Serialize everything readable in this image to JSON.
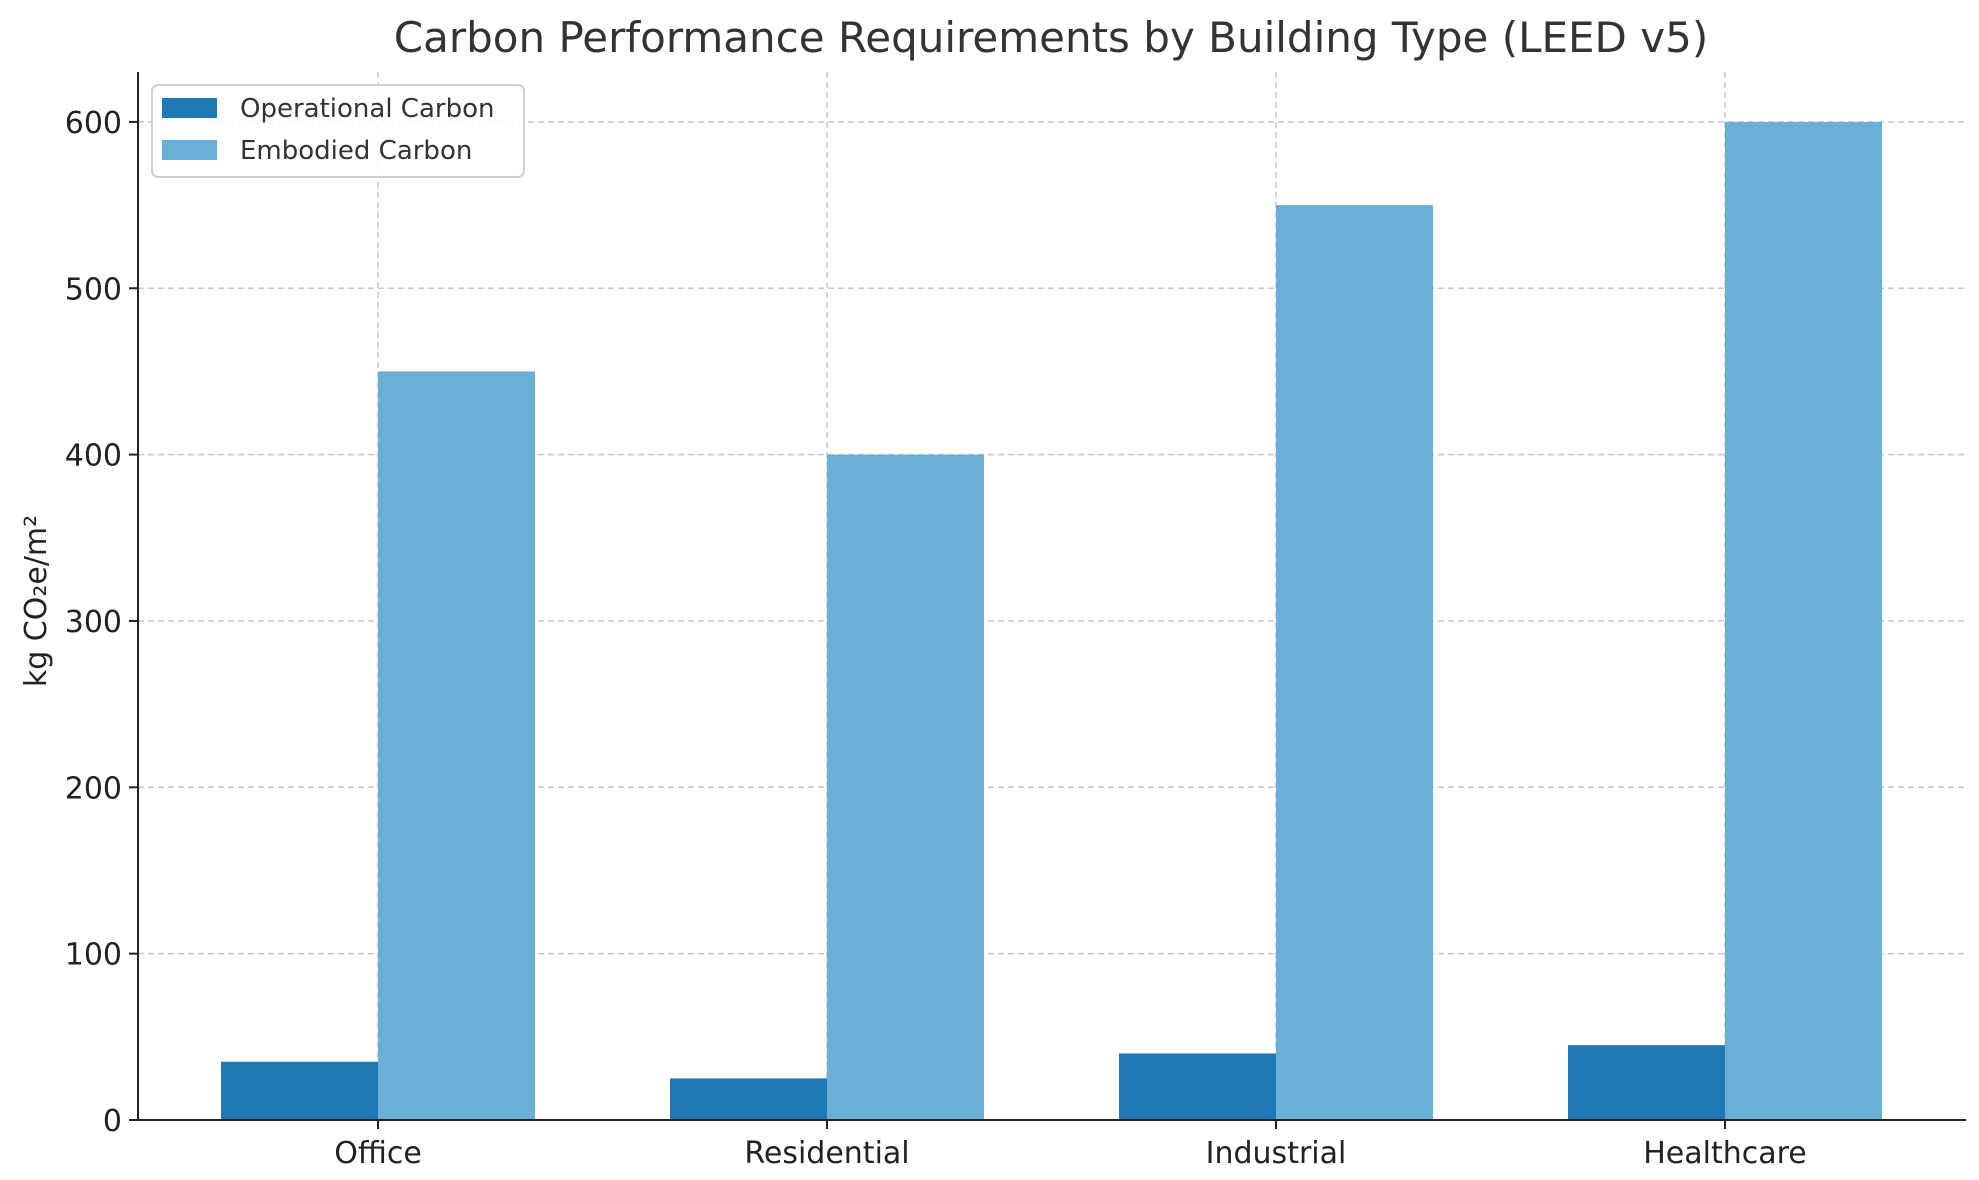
{
  "chart_data": {
    "type": "bar",
    "title": "Carbon Performance Requirements by Building Type (LEED v5)",
    "xlabel": "",
    "ylabel": "kg CO₂e/m²",
    "categories": [
      "Office",
      "Residential",
      "Industrial",
      "Healthcare"
    ],
    "series": [
      {
        "name": "Operational Carbon",
        "values": [
          35,
          25,
          40,
          45
        ],
        "color": "#1f77b4"
      },
      {
        "name": "Embodied Carbon",
        "values": [
          450,
          400,
          550,
          600
        ],
        "color": "#6baed6"
      }
    ],
    "ylim": [
      0,
      630
    ],
    "yticks": [
      "0",
      "100",
      "200",
      "300",
      "400",
      "500",
      "600"
    ],
    "grid": true,
    "legend_position": "top-left"
  }
}
